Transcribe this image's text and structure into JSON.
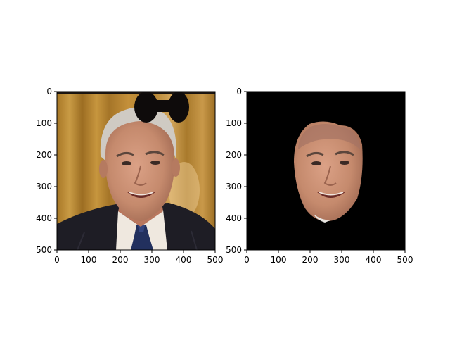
{
  "figure": {
    "background": "#ffffff",
    "panels": [
      {
        "name": "original-photo",
        "content": "portrait photo of a smiling older man with grey hair, dark suit and blue tie, warm curtain background, black bow-tie shaped occluder at top",
        "x_ticks": [
          "0",
          "100",
          "200",
          "300",
          "400",
          "500"
        ],
        "y_ticks": [
          "0",
          "100",
          "200",
          "300",
          "400",
          "500"
        ],
        "xlim": [
          0,
          500
        ],
        "ylim": [
          500,
          0
        ]
      },
      {
        "name": "face-mask",
        "content": "segmented face region on black background",
        "x_ticks": [
          "0",
          "100",
          "200",
          "300",
          "400",
          "500"
        ],
        "y_ticks": [
          "0",
          "100",
          "200",
          "300",
          "400",
          "500"
        ],
        "xlim": [
          0,
          500
        ],
        "ylim": [
          500,
          0
        ]
      }
    ]
  },
  "colors": {
    "curtain": "#b88a33",
    "suit": "#1e1d25",
    "skin": "#c98f74",
    "hair": "#cfcac3",
    "tie": "#22305e",
    "mask_background": "#000000"
  }
}
